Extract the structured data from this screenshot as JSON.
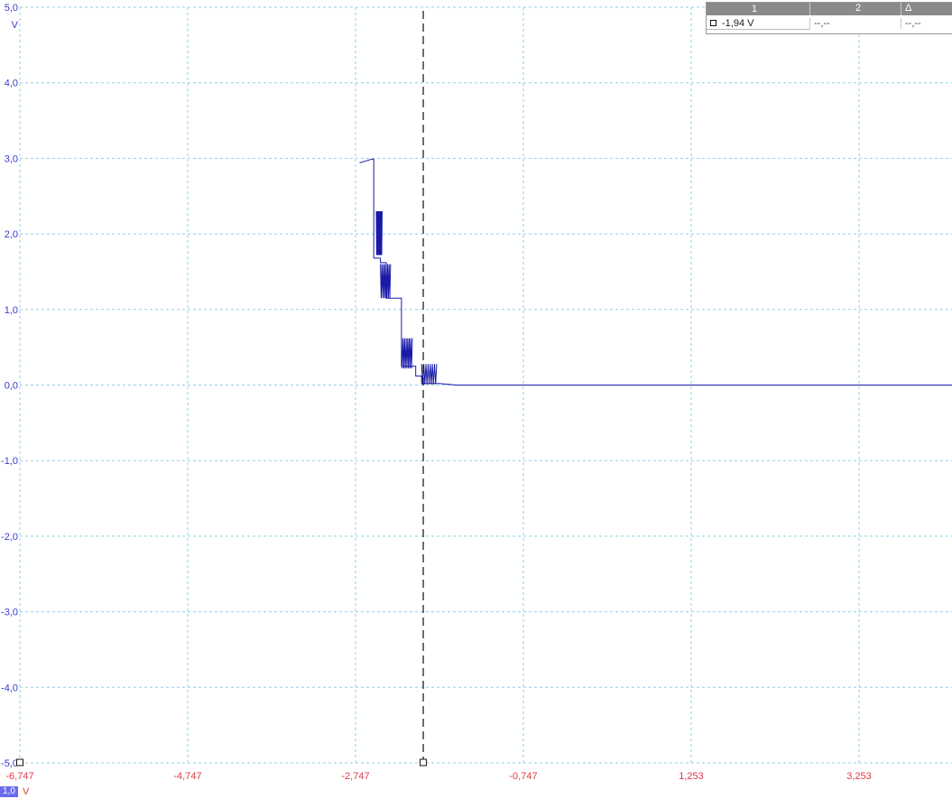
{
  "y_axis": {
    "unit": "V",
    "tick_labels": [
      "5,0",
      "4,0",
      "3,0",
      "2,0",
      "1,0",
      "0,0",
      "-1,0",
      "-2,0",
      "-3,0",
      "-4,0",
      "-5,0"
    ]
  },
  "x_axis": {
    "tick_labels": [
      "-6,747",
      "-4,747",
      "-2,747",
      "-0,747",
      "1,253",
      "3,253"
    ]
  },
  "colors": {
    "trace": "#1a1aa8",
    "grid": "#8fd0e6",
    "y_labels": "#3a3ad0",
    "x_labels": "#e0394a",
    "cursor": "#111111"
  },
  "readout": {
    "headers": [
      "1",
      "2",
      "Δ"
    ],
    "values": [
      "-1,94 V",
      "--,--",
      "--,--"
    ]
  },
  "channel": {
    "scale": "1,0",
    "unit": "V"
  },
  "chart_data": {
    "type": "line",
    "xlim": [
      -6.747,
      5.2
    ],
    "ylim": [
      -5.0,
      5.0
    ],
    "y_unit": "V",
    "grid": true,
    "cursor_x": -1.94,
    "series": [
      {
        "points": [
          [
            -2.7,
            2.94
          ],
          [
            -2.55,
            2.99
          ],
          [
            -2.53,
            2.99
          ],
          [
            -2.53,
            2.25
          ],
          [
            -2.53,
            1.68
          ],
          [
            -2.45,
            1.68
          ],
          [
            -2.45,
            1.62
          ],
          [
            -2.38,
            1.62
          ],
          [
            -2.38,
            1.15
          ],
          [
            -2.2,
            1.15
          ],
          [
            -2.2,
            0.6
          ],
          [
            -2.2,
            0.25
          ],
          [
            -2.03,
            0.25
          ],
          [
            -2.03,
            0.12
          ],
          [
            -1.96,
            0.12
          ],
          [
            -1.96,
            0.02
          ],
          [
            -1.75,
            0.02
          ],
          [
            -1.55,
            0.0
          ],
          [
            5.2,
            0.0
          ]
        ]
      }
    ]
  }
}
